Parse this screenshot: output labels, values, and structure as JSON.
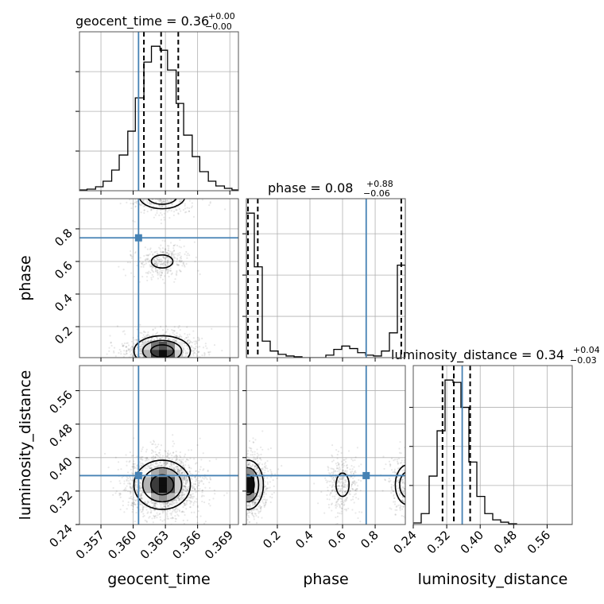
{
  "chart_data": {
    "type": "corner",
    "parameters": [
      "geocent_time",
      "phase",
      "luminosity_distance"
    ],
    "truth": {
      "geocent_time": 0.3605,
      "phase": 0.745,
      "luminosity_distance": 0.357
    },
    "titles": [
      {
        "param": "geocent_time",
        "text": "geocent_time = 0.36",
        "sup": "+0.00",
        "sub": "−0.00"
      },
      {
        "param": "phase",
        "text": "phase = 0.08",
        "sup": "+0.88",
        "sub": "−0.06"
      },
      {
        "param": "luminosity_distance",
        "text": "luminosity_distance = 0.34",
        "sup": "+0.04",
        "sub": "−0.03"
      }
    ],
    "axes": {
      "geocent_time": {
        "range": [
          0.355,
          0.3698
        ],
        "ticks": [
          "0.357",
          "0.360",
          "0.363",
          "0.366",
          "0.369"
        ],
        "tick_values": [
          0.357,
          0.36,
          0.363,
          0.366,
          0.369
        ]
      },
      "phase": {
        "range": [
          0.01,
          0.985
        ],
        "ticks": [
          "0.2",
          "0.4",
          "0.6",
          "0.8"
        ],
        "tick_values": [
          0.2,
          0.4,
          0.6,
          0.8
        ]
      },
      "luminosity_distance": {
        "range": [
          0.24,
          0.62
        ],
        "ticks": [
          "0.24",
          "0.32",
          "0.40",
          "0.48",
          "0.56"
        ],
        "tick_values": [
          0.24,
          0.32,
          0.4,
          0.48,
          0.56
        ]
      }
    },
    "diagonal": [
      {
        "param": "geocent_time",
        "bins": [
          0.355,
          0.3557,
          0.3565,
          0.3572,
          0.358,
          0.3587,
          0.3595,
          0.3602,
          0.361,
          0.3617,
          0.3625,
          0.3632,
          0.364,
          0.3647,
          0.3655,
          0.3662,
          0.367,
          0.3677,
          0.3685,
          0.3692,
          0.37
        ],
        "counts": [
          1,
          2,
          5,
          12,
          26,
          45,
          75,
          117,
          162,
          182,
          177,
          152,
          110,
          70,
          43,
          24,
          12,
          6,
          3,
          1
        ],
        "quantiles": [
          0.361,
          0.3626,
          0.3642
        ]
      },
      {
        "param": "phase",
        "bins": [
          0.01,
          0.0588,
          0.1075,
          0.1563,
          0.205,
          0.2538,
          0.3025,
          0.3513,
          0.4,
          0.4488,
          0.4975,
          0.5463,
          0.595,
          0.6438,
          0.6925,
          0.7413,
          0.79,
          0.8388,
          0.8875,
          0.9363,
          0.985
        ],
        "counts": [
          175,
          110,
          20,
          8,
          4,
          2,
          1,
          0,
          0,
          0,
          3,
          10,
          14,
          11,
          6,
          3,
          2,
          8,
          30,
          112
        ],
        "quantiles": [
          0.02,
          0.08,
          0.96
        ]
      },
      {
        "param": "luminosity_distance",
        "bins": [
          0.24,
          0.259,
          0.278,
          0.297,
          0.316,
          0.335,
          0.354,
          0.373,
          0.392,
          0.411,
          0.43,
          0.449,
          0.468,
          0.487,
          0.506,
          0.525,
          0.544,
          0.563,
          0.582,
          0.601,
          0.62
        ],
        "counts": [
          2,
          14,
          62,
          120,
          185,
          182,
          150,
          80,
          36,
          14,
          6,
          3,
          1,
          0,
          0,
          0,
          0,
          0,
          0,
          0
        ],
        "quantiles": [
          0.31,
          0.337,
          0.376
        ]
      }
    ],
    "pairs": [
      {
        "x": "geocent_time",
        "y": "phase",
        "modes": [
          {
            "cx": 0.3627,
            "cy": 0.05,
            "sx": 0.00125,
            "sy": 0.045,
            "w": 0.62
          },
          {
            "cx": 0.3627,
            "cy": 1.0,
            "sx": 0.00125,
            "sy": 0.045,
            "w": 0.22
          },
          {
            "cx": 0.3627,
            "cy": 0.6,
            "sx": 0.001,
            "sy": 0.04,
            "w": 0.16
          }
        ]
      },
      {
        "x": "geocent_time",
        "y": "luminosity_distance",
        "modes": [
          {
            "cx": 0.3627,
            "cy": 0.335,
            "sx": 0.00125,
            "sy": 0.028,
            "w": 1.0
          }
        ]
      },
      {
        "x": "phase",
        "y": "luminosity_distance",
        "modes": [
          {
            "cx": 0.02,
            "cy": 0.335,
            "sx": 0.045,
            "sy": 0.028,
            "w": 0.62
          },
          {
            "cx": 1.0,
            "cy": 0.335,
            "sx": 0.045,
            "sy": 0.028,
            "w": 0.22
          },
          {
            "cx": 0.6,
            "cy": 0.335,
            "sx": 0.04,
            "sy": 0.028,
            "w": 0.16
          }
        ]
      }
    ],
    "colors": {
      "truth": "#4682b4",
      "hist": "#000000",
      "grid": "#b0b0b0",
      "density": "#000000"
    },
    "grid": true
  }
}
